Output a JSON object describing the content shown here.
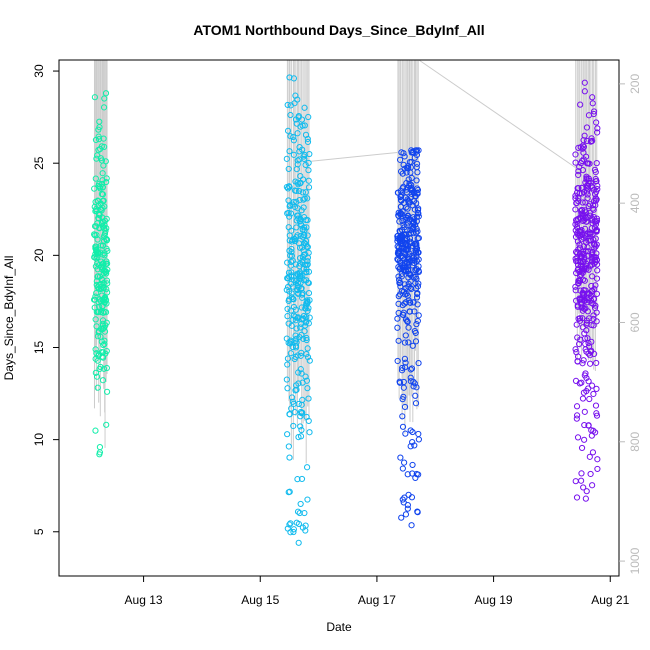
{
  "chart_data": {
    "type": "scatter",
    "title": "ATOM1 Northbound Days_Since_BdyInf_All",
    "xlabel": "Date",
    "ylabel": "Days_Since_BdyInf_All",
    "x_ticks": [
      "Aug 13",
      "Aug 15",
      "Aug 17",
      "Aug 19",
      "Aug 21"
    ],
    "x_tick_values": [
      13,
      15,
      17,
      19,
      21
    ],
    "xlim": [
      11.55,
      21.15
    ],
    "ylim": [
      2.6,
      30.6
    ],
    "y_ticks": [
      5,
      10,
      15,
      20,
      25,
      30
    ],
    "right_axis": {
      "color": "#bbbbbb",
      "ylim": [
        1025,
        160
      ],
      "ticks": [
        200,
        400,
        600,
        800,
        1000
      ],
      "meaning": "depth"
    },
    "grid": false,
    "marker": "open-circle",
    "series": [
      {
        "color": "#11eeaa",
        "x_range": [
          12.15,
          12.38
        ],
        "y_range": [
          9.0,
          28.8
        ],
        "y_center": 19.5,
        "count": 220
      },
      {
        "color": "#11bbee",
        "x_range": [
          15.45,
          15.85
        ],
        "y_range": [
          3.7,
          29.8
        ],
        "y_center": 19.0,
        "count": 330
      },
      {
        "color": "#1144ee",
        "x_range": [
          17.35,
          17.72
        ],
        "y_range": [
          5.3,
          25.7
        ],
        "y_center": 20.5,
        "count": 360
      },
      {
        "color": "#7711ee",
        "x_range": [
          20.4,
          20.78
        ],
        "y_range": [
          6.7,
          29.6
        ],
        "y_center": 20.0,
        "count": 380
      }
    ],
    "depth_trace": {
      "color": "#cccccc",
      "groups": [
        {
          "x_range": [
            12.15,
            12.38
          ],
          "top": 160,
          "bottom_range": [
            620,
            830
          ]
        },
        {
          "x_range": [
            15.45,
            15.85
          ],
          "top": 160,
          "bottom_range": [
            700,
            850
          ]
        },
        {
          "x_range": [
            17.35,
            17.72
          ],
          "top": 160,
          "bottom_range": [
            640,
            800
          ]
        },
        {
          "x_range": [
            20.4,
            20.78
          ],
          "top": 160,
          "bottom_range": [
            580,
            760
          ]
        }
      ],
      "transits": [
        {
          "from": [
            15.85,
            330
          ],
          "to": [
            17.35,
            315
          ]
        },
        {
          "from": [
            17.72,
            160
          ],
          "to": [
            20.4,
            340
          ]
        }
      ]
    }
  }
}
